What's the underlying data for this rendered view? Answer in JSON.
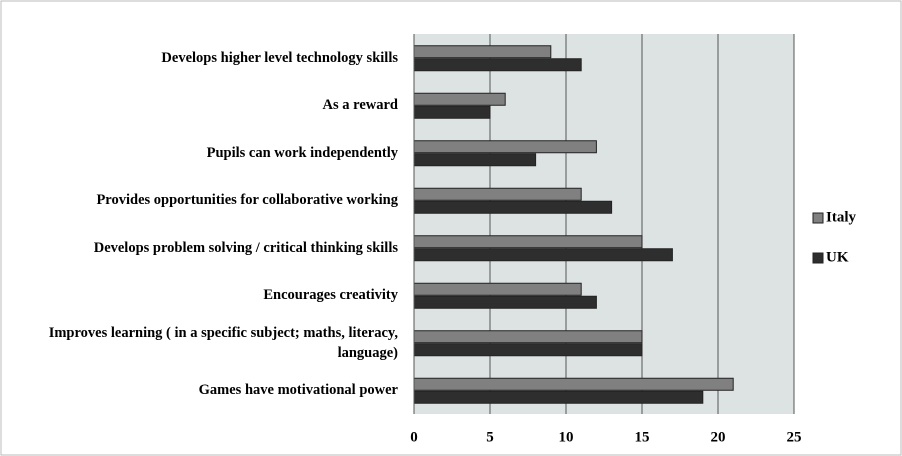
{
  "chart_data": {
    "type": "barh",
    "categories": [
      "Develops higher level technology skills",
      "As a reward",
      "Pupils can work independently",
      "Provides opportunities for collaborative working",
      "Develops problem solving / critical thinking skills",
      "Encourages creativity",
      "Improves learning ( in a specific subject; maths, literacy, language)",
      "Games have motivational power"
    ],
    "series": [
      {
        "name": "Italy",
        "color": "#808080",
        "values": [
          9,
          6,
          12,
          11,
          15,
          11,
          15,
          21
        ]
      },
      {
        "name": "UK",
        "color": "#2e2e2e",
        "values": [
          11,
          5,
          8,
          13,
          17,
          12,
          15,
          19
        ]
      }
    ],
    "xlim": [
      0,
      25
    ],
    "xticks": [
      0,
      5,
      10,
      15,
      20,
      25
    ],
    "grid": true,
    "legend": "right"
  }
}
